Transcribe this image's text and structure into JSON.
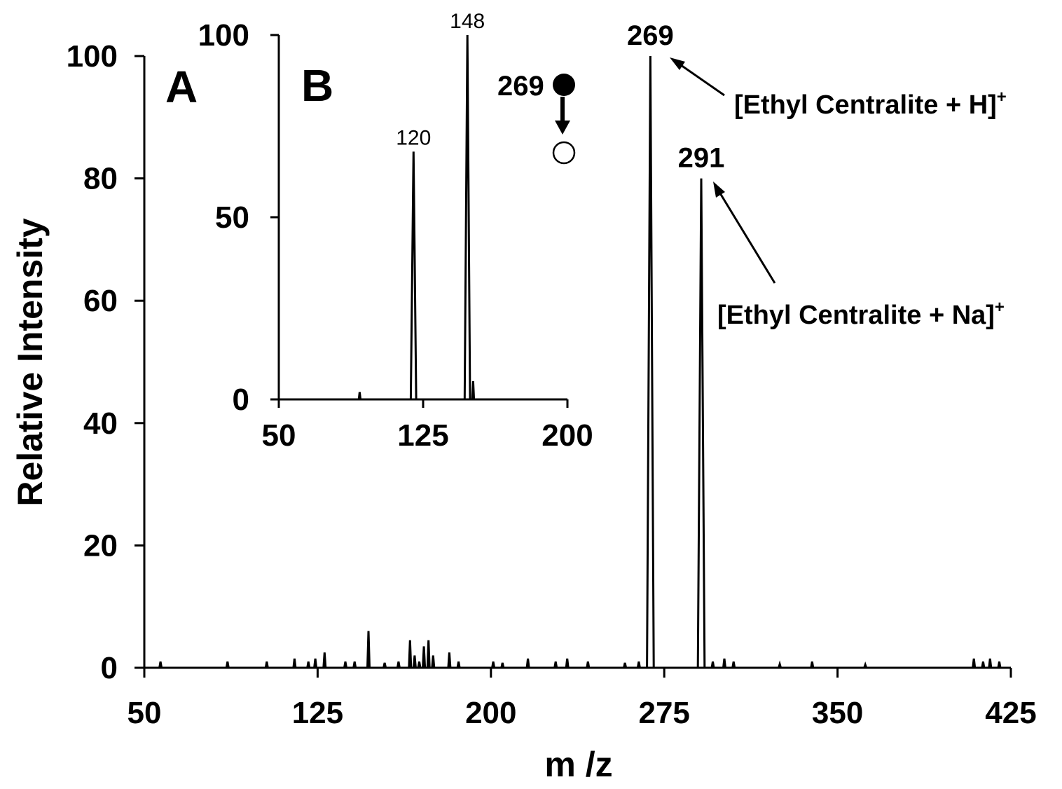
{
  "chart_data": [
    {
      "id": "A",
      "type": "line",
      "panel_label": "A",
      "xlabel": "m /z",
      "ylabel": "Relative Intensity",
      "xlim": [
        50,
        425
      ],
      "ylim": [
        0,
        100
      ],
      "xticks": [
        50,
        125,
        200,
        275,
        350,
        425
      ],
      "yticks": [
        0,
        20,
        40,
        60,
        80,
        100
      ],
      "grid": false,
      "peaks": [
        {
          "x": 57,
          "y": 1
        },
        {
          "x": 86,
          "y": 1
        },
        {
          "x": 103,
          "y": 1
        },
        {
          "x": 115,
          "y": 1.5
        },
        {
          "x": 121,
          "y": 1
        },
        {
          "x": 124,
          "y": 1.5
        },
        {
          "x": 128,
          "y": 2.5
        },
        {
          "x": 137,
          "y": 1
        },
        {
          "x": 141,
          "y": 1
        },
        {
          "x": 147,
          "y": 6
        },
        {
          "x": 154,
          "y": 0.8
        },
        {
          "x": 160,
          "y": 1
        },
        {
          "x": 165,
          "y": 4.5
        },
        {
          "x": 167,
          "y": 2
        },
        {
          "x": 169,
          "y": 1
        },
        {
          "x": 171,
          "y": 3.5
        },
        {
          "x": 173,
          "y": 4.5
        },
        {
          "x": 175,
          "y": 2
        },
        {
          "x": 182,
          "y": 2.5
        },
        {
          "x": 186,
          "y": 1
        },
        {
          "x": 201,
          "y": 1
        },
        {
          "x": 205,
          "y": 0.8
        },
        {
          "x": 216,
          "y": 1.5
        },
        {
          "x": 228,
          "y": 1
        },
        {
          "x": 233,
          "y": 1.5
        },
        {
          "x": 242,
          "y": 1
        },
        {
          "x": 258,
          "y": 0.8
        },
        {
          "x": 264,
          "y": 1
        },
        {
          "x": 269,
          "y": 100
        },
        {
          "x": 291,
          "y": 80
        },
        {
          "x": 296,
          "y": 1
        },
        {
          "x": 301,
          "y": 1.5
        },
        {
          "x": 305,
          "y": 1
        },
        {
          "x": 325,
          "y": 0.6
        },
        {
          "x": 339,
          "y": 1
        },
        {
          "x": 362,
          "y": 0.5
        },
        {
          "x": 409,
          "y": 1.5
        },
        {
          "x": 413,
          "y": 1
        },
        {
          "x": 416,
          "y": 1.5
        },
        {
          "x": 420,
          "y": 1
        }
      ],
      "peak_labels": [
        {
          "x": 269,
          "y": 100,
          "text": "269"
        },
        {
          "x": 291,
          "y": 80,
          "text": "291"
        }
      ],
      "annotations": [
        {
          "text": "[Ethyl Centralite + H]",
          "superscript": "+",
          "target_x": 269,
          "target_y": 100
        },
        {
          "text": "[Ethyl Centralite + Na]",
          "superscript": "+",
          "target_x": 291,
          "target_y": 80
        }
      ]
    },
    {
      "id": "B",
      "type": "line",
      "panel_label": "B",
      "xlabel": "",
      "ylabel": "",
      "xlim": [
        50,
        200
      ],
      "ylim": [
        0,
        100
      ],
      "xticks": [
        50,
        125,
        200
      ],
      "yticks": [
        0,
        50,
        100
      ],
      "grid": false,
      "peaks": [
        {
          "x": 92,
          "y": 2
        },
        {
          "x": 120,
          "y": 68
        },
        {
          "x": 148,
          "y": 100
        },
        {
          "x": 151,
          "y": 5
        }
      ],
      "peak_labels": [
        {
          "x": 120,
          "y": 68,
          "text": "120"
        },
        {
          "x": 148,
          "y": 100,
          "text": "148"
        }
      ],
      "precursor": {
        "label": "269",
        "parent_symbol": "filled-circle",
        "product_symbol": "open-circle",
        "arrow": "down-arrow"
      }
    }
  ]
}
